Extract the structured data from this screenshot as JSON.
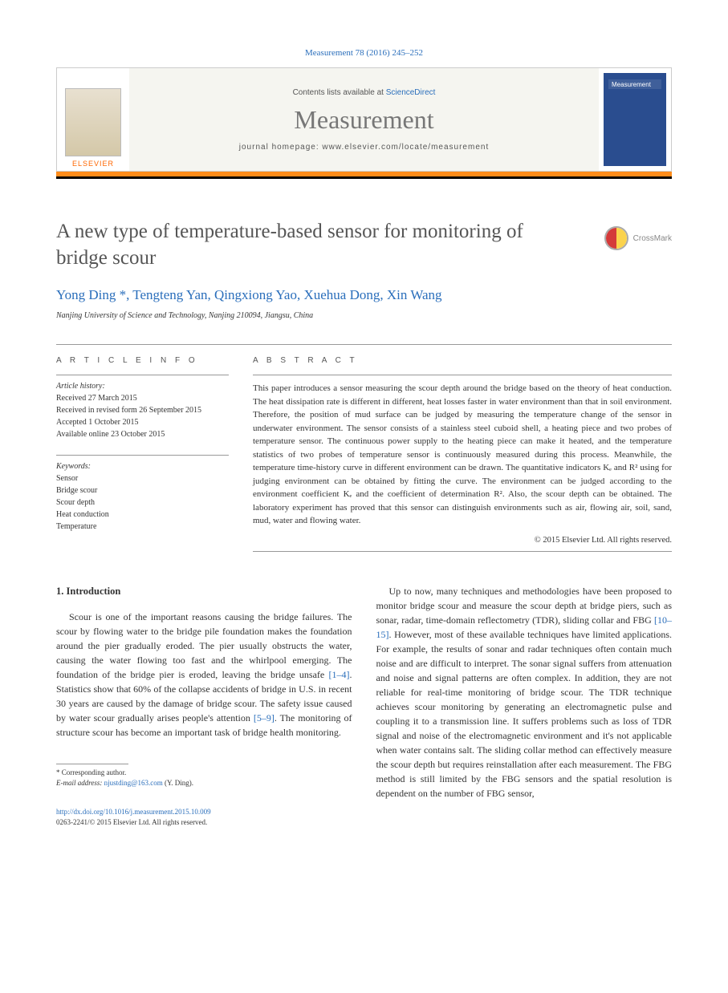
{
  "citation": "Measurement 78 (2016) 245–252",
  "header": {
    "contents_prefix": "Contents lists available at ",
    "contents_link": "ScienceDirect",
    "journal": "Measurement",
    "homepage": "journal homepage: www.elsevier.com/locate/measurement",
    "publisher": "ELSEVIER",
    "cover_label": "Measurement"
  },
  "colors": {
    "orange_bar": "#ff8c1a",
    "black_bar": "#000000",
    "link_blue": "#2a6ebb",
    "title_gray": "#555555",
    "cover_bg": "#2a4d8f"
  },
  "crossmark": "CrossMark",
  "title": "A new type of temperature-based sensor for monitoring of bridge scour",
  "authors": "Yong Ding *, Tengteng Yan, Qingxiong Yao, Xuehua Dong, Xin Wang",
  "affiliation": "Nanjing University of Science and Technology, Nanjing 210094, Jiangsu, China",
  "article_info": {
    "heading": "A R T I C L E   I N F O",
    "history_label": "Article history:",
    "history": [
      "Received 27 March 2015",
      "Received in revised form 26 September 2015",
      "Accepted 1 October 2015",
      "Available online 23 October 2015"
    ],
    "keywords_label": "Keywords:",
    "keywords": [
      "Sensor",
      "Bridge scour",
      "Scour depth",
      "Heat conduction",
      "Temperature"
    ]
  },
  "abstract": {
    "heading": "A B S T R A C T",
    "text": "This paper introduces a sensor measuring the scour depth around the bridge based on the theory of heat conduction. The heat dissipation rate is different in different, heat losses faster in water environment than that in soil environment. Therefore, the position of mud surface can be judged by measuring the temperature change of the sensor in underwater environment. The sensor consists of a stainless steel cuboid shell, a heating piece and two probes of temperature sensor. The continuous power supply to the heating piece can make it heated, and the temperature statistics of two probes of temperature sensor is continuously measured during this process. Meanwhile, the temperature time-history curve in different environment can be drawn. The quantitative indicators Kₑ and R² using for judging environment can be obtained by fitting the curve. The environment can be judged according to the environment coefficient Kₑ and the coefficient of determination R². Also, the scour depth can be obtained. The laboratory experiment has proved that this sensor can distinguish environments such as air, flowing air, soil, sand, mud, water and flowing water.",
    "copyright": "© 2015 Elsevier Ltd. All rights reserved."
  },
  "body": {
    "section1_heading": "1. Introduction",
    "col1_p1a": "Scour is one of the important reasons causing the bridge failures. The scour by flowing water to the bridge pile foundation makes the foundation around the pier gradually eroded. The pier usually obstructs the water, causing the water flowing too fast and the whirlpool emerging. The foundation of the bridge pier is eroded, leaving the bridge unsafe ",
    "col1_ref1": "[1–4]",
    "col1_p1b": ". Statistics show that 60% of the collapse accidents of bridge in U.S. in recent 30 years are caused by the damage of bridge scour. The safety issue caused by water scour gradually arises people's attention ",
    "col1_ref2": "[5–9]",
    "col1_p1c": ". The monitoring of structure scour has become an important task of bridge health monitoring.",
    "col2_p1a": "Up to now, many techniques and methodologies have been proposed to monitor bridge scour and measure the scour depth at bridge piers, such as sonar, radar, time-domain reflectometry (TDR), sliding collar and FBG ",
    "col2_ref1": "[10–15]",
    "col2_p1b": ". However, most of these available techniques have limited applications. For example, the results of sonar and radar techniques often contain much noise and are difficult to interpret. The sonar signal suffers from attenuation and noise and signal patterns are often complex. In addition, they are not reliable for real-time monitoring of bridge scour. The TDR technique achieves scour monitoring by generating an electromagnetic pulse and coupling it to a transmission line. It suffers problems such as loss of TDR signal and noise of the electromagnetic environment and it's not applicable when water contains salt. The sliding collar method can effectively measure the scour depth but requires reinstallation after each measurement. The FBG method is still limited by the FBG sensors and the spatial resolution is dependent on the number of FBG sensor,"
  },
  "footnotes": {
    "corresponding": "* Corresponding author.",
    "email_label": "E-mail address: ",
    "email": "njustding@163.com",
    "email_suffix": " (Y. Ding)."
  },
  "bottom": {
    "doi": "http://dx.doi.org/10.1016/j.measurement.2015.10.009",
    "issn": "0263-2241/© 2015 Elsevier Ltd. All rights reserved."
  }
}
